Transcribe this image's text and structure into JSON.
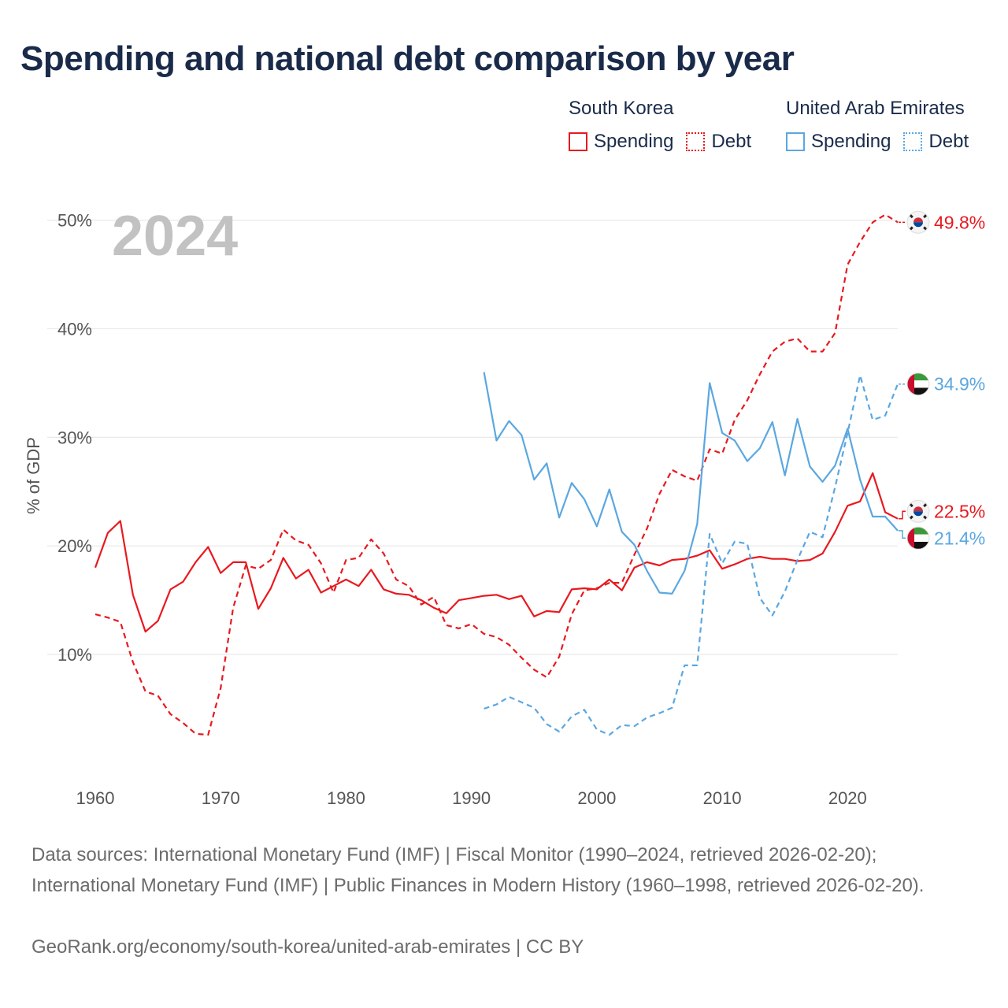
{
  "title": "Spending and national debt comparison by year",
  "legend": {
    "groups": [
      {
        "name": "South Korea",
        "color": "#e8191f",
        "spending_label": "Spending",
        "debt_label": "Debt"
      },
      {
        "name": "United Arab Emirates",
        "color": "#5ba7e0",
        "spending_label": "Spending",
        "debt_label": "Debt"
      }
    ]
  },
  "footer": {
    "sources": "Data sources: International Monetary Fund (IMF) | Fiscal Monitor (1990–2024, retrieved 2026-02-20); International Monetary Fund (IMF) | Public Finances in Modern History (1960–1998, retrieved 2026-02-20).",
    "credit": "GeoRank.org/economy/south-korea/united-arab-emirates | CC BY"
  },
  "chart_data": {
    "type": "line",
    "year_label": "2024",
    "ylabel": "% of GDP",
    "xlim": [
      1960,
      2024
    ],
    "ylim": [
      0,
      52
    ],
    "xticks": [
      1960,
      1970,
      1980,
      1990,
      2000,
      2010,
      2020
    ],
    "yticks": [
      10,
      20,
      30,
      40,
      50
    ],
    "ytick_labels": [
      "10%",
      "20%",
      "30%",
      "40%",
      "50%"
    ],
    "series": [
      {
        "name": "South Korea Spending",
        "country": "South Korea",
        "metric": "Spending",
        "style": "solid",
        "color": "#e8191f",
        "end_label": "22.5%",
        "flag": "south-korea",
        "x": [
          1960,
          1961,
          1962,
          1963,
          1964,
          1965,
          1966,
          1967,
          1968,
          1969,
          1970,
          1971,
          1972,
          1973,
          1974,
          1975,
          1976,
          1977,
          1978,
          1979,
          1980,
          1981,
          1982,
          1983,
          1984,
          1985,
          1986,
          1987,
          1988,
          1989,
          1990,
          1991,
          1992,
          1993,
          1994,
          1995,
          1996,
          1997,
          1998,
          1999,
          2000,
          2001,
          2002,
          2003,
          2004,
          2005,
          2006,
          2007,
          2008,
          2009,
          2010,
          2011,
          2012,
          2013,
          2014,
          2015,
          2016,
          2017,
          2018,
          2019,
          2020,
          2021,
          2022,
          2023,
          2024
        ],
        "values": [
          18.0,
          21.2,
          22.3,
          15.5,
          12.1,
          13.1,
          16.0,
          16.7,
          18.5,
          19.9,
          17.5,
          18.5,
          18.5,
          14.2,
          16.1,
          18.9,
          17.0,
          17.8,
          15.7,
          16.3,
          16.9,
          16.3,
          17.8,
          16.0,
          15.6,
          15.5,
          15.0,
          14.3,
          13.8,
          15.0,
          15.2,
          15.4,
          15.5,
          15.1,
          15.4,
          13.5,
          14.0,
          13.9,
          16.0,
          16.1,
          16.0,
          16.9,
          15.9,
          18.0,
          18.5,
          18.2,
          18.7,
          18.8,
          19.1,
          19.6,
          17.9,
          18.3,
          18.8,
          19.0,
          18.8,
          18.8,
          18.6,
          18.7,
          19.3,
          21.3,
          23.7,
          24.1,
          26.7,
          23.1,
          22.5
        ]
      },
      {
        "name": "South Korea Debt",
        "country": "South Korea",
        "metric": "Debt",
        "style": "dashed",
        "color": "#e8191f",
        "end_label": "49.8%",
        "flag": "south-korea",
        "x": [
          1960,
          1961,
          1962,
          1963,
          1964,
          1965,
          1966,
          1967,
          1968,
          1969,
          1970,
          1971,
          1972,
          1973,
          1974,
          1975,
          1976,
          1977,
          1978,
          1979,
          1980,
          1981,
          1982,
          1983,
          1984,
          1985,
          1986,
          1987,
          1988,
          1989,
          1990,
          1991,
          1992,
          1993,
          1994,
          1995,
          1996,
          1997,
          1998,
          1999,
          2000,
          2001,
          2002,
          2003,
          2004,
          2005,
          2006,
          2007,
          2008,
          2009,
          2010,
          2011,
          2012,
          2013,
          2014,
          2015,
          2016,
          2017,
          2018,
          2019,
          2020,
          2021,
          2022,
          2023,
          2024
        ],
        "values": [
          13.7,
          13.4,
          13.0,
          9.3,
          6.6,
          6.2,
          4.5,
          3.7,
          2.7,
          2.6,
          6.9,
          14.3,
          18.2,
          17.9,
          18.7,
          21.5,
          20.5,
          20.1,
          18.4,
          15.7,
          18.7,
          18.9,
          20.6,
          19.3,
          16.9,
          16.3,
          14.6,
          15.3,
          12.7,
          12.4,
          12.8,
          11.9,
          11.6,
          10.9,
          9.7,
          8.6,
          7.9,
          9.8,
          13.7,
          15.9,
          16.1,
          16.6,
          16.6,
          19.2,
          21.6,
          24.8,
          27.0,
          26.4,
          26.0,
          28.9,
          28.5,
          31.6,
          33.4,
          35.8,
          37.9,
          38.8,
          39.1,
          37.9,
          37.9,
          39.6,
          45.9,
          48.0,
          49.8,
          50.5,
          49.8
        ]
      },
      {
        "name": "United Arab Emirates Spending",
        "country": "United Arab Emirates",
        "metric": "Spending",
        "style": "solid",
        "color": "#5ba7e0",
        "end_label": "21.4%",
        "flag": "uae",
        "x": [
          1991,
          1992,
          1993,
          1994,
          1995,
          1996,
          1997,
          1998,
          1999,
          2000,
          2001,
          2002,
          2003,
          2004,
          2005,
          2006,
          2007,
          2008,
          2009,
          2010,
          2011,
          2012,
          2013,
          2014,
          2015,
          2016,
          2017,
          2018,
          2019,
          2020,
          2021,
          2022,
          2023,
          2024
        ],
        "values": [
          36.0,
          29.7,
          31.5,
          30.2,
          26.1,
          27.6,
          22.6,
          25.8,
          24.3,
          21.8,
          25.2,
          21.3,
          20.1,
          17.7,
          15.7,
          15.6,
          17.7,
          22.0,
          35.0,
          30.4,
          29.7,
          27.8,
          29.0,
          31.4,
          26.5,
          31.7,
          27.3,
          25.9,
          27.4,
          30.8,
          26.1,
          22.7,
          22.7,
          21.4
        ]
      },
      {
        "name": "United Arab Emirates Debt",
        "country": "United Arab Emirates",
        "metric": "Debt",
        "style": "dashed",
        "color": "#5ba7e0",
        "end_label": "34.9%",
        "flag": "uae",
        "x": [
          1991,
          1992,
          1993,
          1994,
          1995,
          1996,
          1997,
          1998,
          1999,
          2000,
          2001,
          2002,
          2003,
          2004,
          2005,
          2006,
          2007,
          2008,
          2009,
          2010,
          2011,
          2012,
          2013,
          2014,
          2015,
          2016,
          2017,
          2018,
          2019,
          2020,
          2021,
          2022,
          2023,
          2024
        ],
        "values": [
          5.0,
          5.4,
          6.1,
          5.6,
          5.1,
          3.6,
          2.9,
          4.3,
          4.9,
          3.1,
          2.6,
          3.5,
          3.4,
          4.2,
          4.6,
          5.1,
          9.0,
          9.0,
          21.1,
          18.4,
          20.4,
          20.2,
          15.2,
          13.6,
          15.8,
          18.7,
          21.3,
          20.8,
          25.4,
          30.4,
          35.7,
          31.6,
          32.0,
          34.9
        ]
      }
    ]
  }
}
